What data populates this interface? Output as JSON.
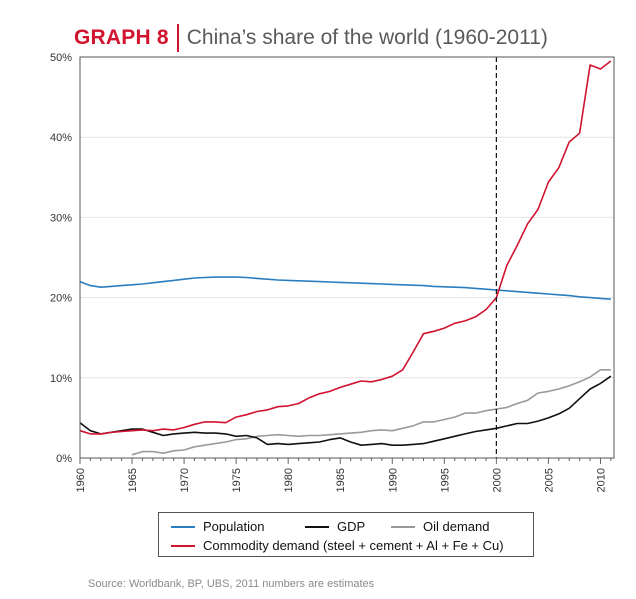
{
  "header": {
    "tag": "GRAPH 8",
    "title": "China’s share of the world (1960-2011)"
  },
  "colors": {
    "population": "#2a7ec0",
    "gdp": "#111111",
    "oil": "#9a9a9a",
    "commodity": "#d2132e",
    "vline": "#111111"
  },
  "chart_data": {
    "type": "line",
    "title": "China’s share of the world (1960-2011)",
    "xlabel": "",
    "ylabel": "",
    "xlim": [
      1960,
      2011
    ],
    "ylim": [
      0,
      50
    ],
    "y_ticks": [
      "0%",
      "10%",
      "20%",
      "30%",
      "40%",
      "50%"
    ],
    "x_ticks": [
      "1960",
      "1965",
      "1970",
      "1975",
      "1980",
      "1985",
      "1990",
      "1995",
      "2000",
      "2005",
      "2010"
    ],
    "annotation": {
      "type": "vertical-dashed-line",
      "x": 2000
    },
    "legend_position": "bottom",
    "series": [
      {
        "name": "Population",
        "color_key": "population",
        "x": [
          1960,
          1961,
          1962,
          1963,
          1964,
          1965,
          1966,
          1967,
          1968,
          1969,
          1970,
          1971,
          1972,
          1973,
          1974,
          1975,
          1976,
          1977,
          1978,
          1979,
          1980,
          1981,
          1982,
          1983,
          1984,
          1985,
          1986,
          1987,
          1988,
          1989,
          1990,
          1991,
          1992,
          1993,
          1994,
          1995,
          1996,
          1997,
          1998,
          1999,
          2000,
          2001,
          2002,
          2003,
          2004,
          2005,
          2006,
          2007,
          2008,
          2009,
          2010,
          2011
        ],
        "values": [
          22.0,
          21.5,
          21.3,
          21.4,
          21.5,
          21.6,
          21.7,
          21.85,
          22.0,
          22.15,
          22.3,
          22.45,
          22.5,
          22.55,
          22.55,
          22.55,
          22.5,
          22.4,
          22.3,
          22.2,
          22.15,
          22.1,
          22.05,
          22.0,
          21.95,
          21.9,
          21.85,
          21.8,
          21.75,
          21.7,
          21.65,
          21.6,
          21.55,
          21.5,
          21.4,
          21.35,
          21.3,
          21.25,
          21.15,
          21.05,
          20.95,
          20.85,
          20.75,
          20.65,
          20.55,
          20.45,
          20.35,
          20.25,
          20.1,
          20.0,
          19.9,
          19.8
        ]
      },
      {
        "name": "GDP",
        "color_key": "gdp",
        "x": [
          1960,
          1961,
          1962,
          1963,
          1964,
          1965,
          1966,
          1967,
          1968,
          1969,
          1970,
          1971,
          1972,
          1973,
          1974,
          1975,
          1976,
          1977,
          1978,
          1979,
          1980,
          1981,
          1982,
          1983,
          1984,
          1985,
          1986,
          1987,
          1988,
          1989,
          1990,
          1991,
          1992,
          1993,
          1994,
          1995,
          1996,
          1997,
          1998,
          1999,
          2000,
          2001,
          2002,
          2003,
          2004,
          2005,
          2006,
          2007,
          2008,
          2009,
          2010,
          2011
        ],
        "values": [
          4.4,
          3.4,
          3.0,
          3.2,
          3.4,
          3.6,
          3.6,
          3.2,
          2.8,
          3.0,
          3.1,
          3.2,
          3.1,
          3.1,
          3.0,
          2.7,
          2.8,
          2.5,
          1.7,
          1.8,
          1.7,
          1.8,
          1.9,
          2.0,
          2.3,
          2.5,
          2.0,
          1.6,
          1.7,
          1.8,
          1.6,
          1.6,
          1.7,
          1.8,
          2.1,
          2.4,
          2.7,
          3.0,
          3.3,
          3.5,
          3.7,
          4.0,
          4.3,
          4.3,
          4.6,
          5.0,
          5.5,
          6.2,
          7.4,
          8.6,
          9.3,
          10.2
        ]
      },
      {
        "name": "Oil demand",
        "color_key": "oil",
        "x": [
          1965,
          1966,
          1967,
          1968,
          1969,
          1970,
          1971,
          1972,
          1973,
          1974,
          1975,
          1976,
          1977,
          1978,
          1979,
          1980,
          1981,
          1982,
          1983,
          1984,
          1985,
          1986,
          1987,
          1988,
          1989,
          1990,
          1991,
          1992,
          1993,
          1994,
          1995,
          1996,
          1997,
          1998,
          1999,
          2000,
          2001,
          2002,
          2003,
          2004,
          2005,
          2006,
          2007,
          2008,
          2009,
          2010,
          2011
        ],
        "values": [
          0.4,
          0.8,
          0.8,
          0.6,
          0.9,
          1.0,
          1.4,
          1.6,
          1.8,
          2.0,
          2.3,
          2.4,
          2.7,
          2.8,
          2.9,
          2.8,
          2.7,
          2.8,
          2.8,
          2.9,
          3.0,
          3.1,
          3.2,
          3.4,
          3.5,
          3.4,
          3.7,
          4.0,
          4.5,
          4.5,
          4.8,
          5.1,
          5.6,
          5.6,
          5.9,
          6.1,
          6.3,
          6.8,
          7.2,
          8.1,
          8.3,
          8.6,
          9.0,
          9.5,
          10.1,
          11.0,
          11.0
        ]
      },
      {
        "name": "Commodity demand (steel + cement + Al + Fe + Cu)",
        "color_key": "commodity",
        "x": [
          1960,
          1961,
          1962,
          1963,
          1964,
          1965,
          1966,
          1967,
          1968,
          1969,
          1970,
          1971,
          1972,
          1973,
          1974,
          1975,
          1976,
          1977,
          1978,
          1979,
          1980,
          1981,
          1982,
          1983,
          1984,
          1985,
          1986,
          1987,
          1988,
          1989,
          1990,
          1991,
          1992,
          1993,
          1994,
          1995,
          1996,
          1997,
          1998,
          1999,
          2000,
          2001,
          2002,
          2003,
          2004,
          2005,
          2006,
          2007,
          2008,
          2009,
          2010,
          2011
        ],
        "values": [
          3.4,
          3.0,
          3.0,
          3.2,
          3.3,
          3.4,
          3.5,
          3.4,
          3.6,
          3.5,
          3.8,
          4.2,
          4.5,
          4.5,
          4.4,
          5.1,
          5.4,
          5.8,
          6.0,
          6.4,
          6.5,
          6.8,
          7.5,
          8.0,
          8.3,
          8.8,
          9.2,
          9.6,
          9.5,
          9.8,
          10.2,
          11.0,
          13.2,
          15.5,
          15.8,
          16.2,
          16.8,
          17.1,
          17.6,
          18.5,
          20.0,
          24.0,
          26.5,
          29.2,
          31.0,
          34.4,
          36.2,
          39.4,
          40.5,
          49.0,
          48.5,
          49.5
        ]
      }
    ]
  },
  "legend": {
    "population": "Population",
    "gdp": "GDP",
    "oil": "Oil demand",
    "commodity": "Commodity demand (steel + cement + Al + Fe + Cu)"
  },
  "source": "Source: Worldbank, BP, UBS, 2011 numbers are estimates"
}
